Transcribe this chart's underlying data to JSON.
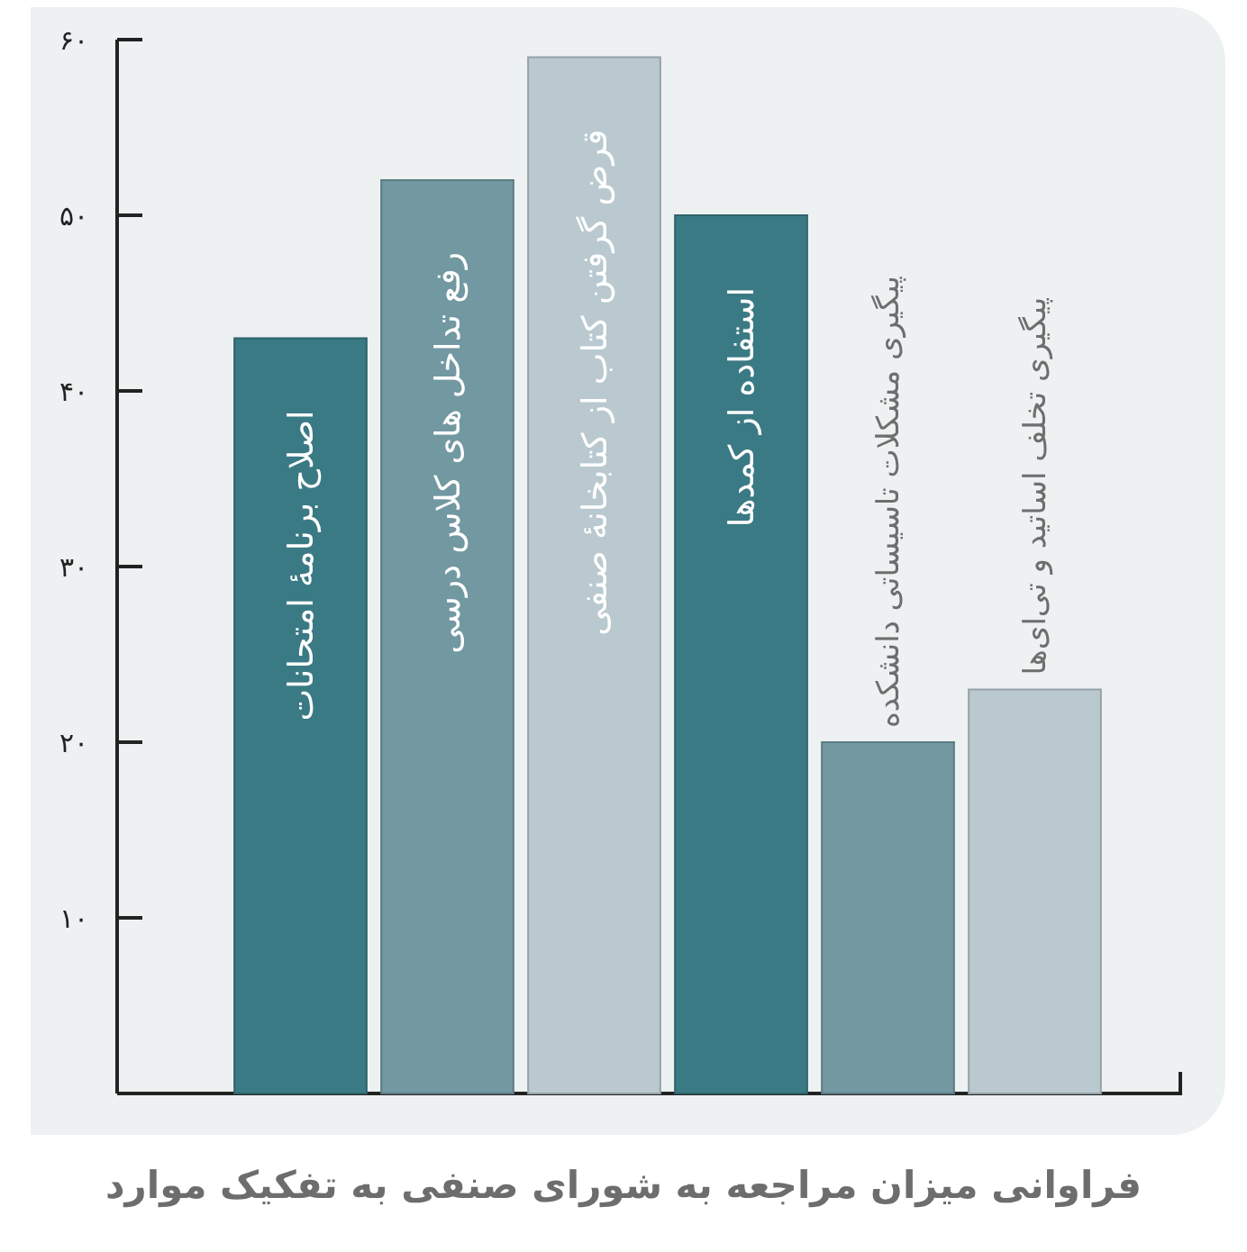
{
  "chart_data": {
    "type": "bar",
    "title": "فراوانی میزان مراجعه به شورای صنفی به تفکیک موارد",
    "categories": [
      "اصلاح برنامهٔ امتحانات",
      "رفع تداخل های کلاس درسی",
      "قرض گرفتن کتاب از کتابخانهٔ صنفی",
      "استفاده از کمدها",
      "پیگیری مشکلات تاسیساتی دانشکده",
      "پیگیری تخلف اساتید و تی‌ای‌ها"
    ],
    "values": [
      43,
      52,
      59,
      50,
      20,
      23
    ],
    "colors": [
      "#3a7a84",
      "#7298a1",
      "#b9c9cf",
      "#3a7a84",
      "#7298a1",
      "#b9c9cf"
    ],
    "ylim": [
      0,
      60
    ],
    "yticks": [
      {
        "value": 10,
        "label": "۱۰"
      },
      {
        "value": 20,
        "label": "۲۰"
      },
      {
        "value": 30,
        "label": "۳۰"
      },
      {
        "value": 40,
        "label": "۴۰"
      },
      {
        "value": 50,
        "label": "۵۰"
      },
      {
        "value": 60,
        "label": "۶۰"
      }
    ],
    "grid": false
  }
}
